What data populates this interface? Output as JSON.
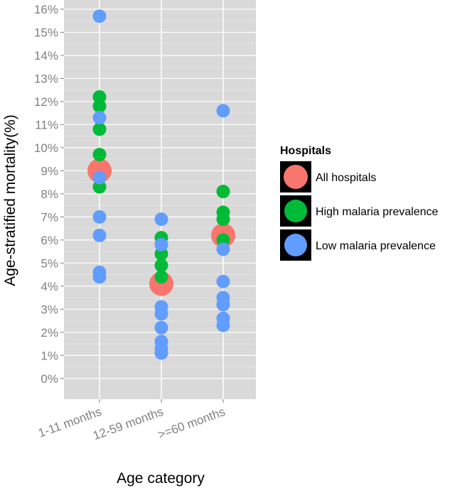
{
  "chart_data": {
    "type": "scatter",
    "title": "",
    "xlabel": "Age category",
    "ylabel": "Age-stratified mortality(%)",
    "categories": [
      "1-11 months",
      "12-59 months",
      ">=60 months"
    ],
    "y_ticks": [
      "0%",
      "1%",
      "2%",
      "3%",
      "4%",
      "5%",
      "6%",
      "7%",
      "8%",
      "9%",
      "10%",
      "11%",
      "12%",
      "13%",
      "14%",
      "15%",
      "16%"
    ],
    "ylim": [
      -0.9,
      16.4
    ],
    "grid": true,
    "legend": {
      "title": "Hospitals",
      "position": "right",
      "entries": [
        {
          "name": "All hospitals",
          "color": "#f8766d"
        },
        {
          "name": "High malaria prevalence",
          "color": "#00ba38"
        },
        {
          "name": "Low malaria prevalence",
          "color": "#619cff"
        }
      ]
    },
    "series": [
      {
        "name": "All hospitals",
        "color": "#f8766d",
        "size": "large",
        "points": [
          {
            "category": "1-11 months",
            "value": 9.0
          },
          {
            "category": "12-59 months",
            "value": 4.1
          },
          {
            "category": ">=60 months",
            "value": 6.2
          }
        ]
      },
      {
        "name": "High malaria prevalence",
        "color": "#00ba38",
        "size": "small",
        "points": [
          {
            "category": "1-11 months",
            "value": 12.2
          },
          {
            "category": "1-11 months",
            "value": 11.8
          },
          {
            "category": "1-11 months",
            "value": 10.8
          },
          {
            "category": "1-11 months",
            "value": 9.7
          },
          {
            "category": "1-11 months",
            "value": 8.3
          },
          {
            "category": "12-59 months",
            "value": 6.1
          },
          {
            "category": "12-59 months",
            "value": 5.4
          },
          {
            "category": "12-59 months",
            "value": 4.9
          },
          {
            "category": "12-59 months",
            "value": 4.4
          },
          {
            "category": ">=60 months",
            "value": 8.1
          },
          {
            "category": ">=60 months",
            "value": 7.2
          },
          {
            "category": ">=60 months",
            "value": 6.9
          },
          {
            "category": ">=60 months",
            "value": 6.0
          }
        ]
      },
      {
        "name": "Low malaria prevalence",
        "color": "#619cff",
        "size": "small",
        "points": [
          {
            "category": "1-11 months",
            "value": 15.7
          },
          {
            "category": "1-11 months",
            "value": 11.3
          },
          {
            "category": "1-11 months",
            "value": 8.7
          },
          {
            "category": "1-11 months",
            "value": 7.0
          },
          {
            "category": "1-11 months",
            "value": 6.2
          },
          {
            "category": "1-11 months",
            "value": 4.6
          },
          {
            "category": "1-11 months",
            "value": 4.4
          },
          {
            "category": "12-59 months",
            "value": 6.9
          },
          {
            "category": "12-59 months",
            "value": 5.8
          },
          {
            "category": "12-59 months",
            "value": 3.1
          },
          {
            "category": "12-59 months",
            "value": 2.8
          },
          {
            "category": "12-59 months",
            "value": 2.2
          },
          {
            "category": "12-59 months",
            "value": 1.6
          },
          {
            "category": "12-59 months",
            "value": 1.3
          },
          {
            "category": "12-59 months",
            "value": 1.1
          },
          {
            "category": ">=60 months",
            "value": 11.6
          },
          {
            "category": ">=60 months",
            "value": 5.6
          },
          {
            "category": ">=60 months",
            "value": 4.2
          },
          {
            "category": ">=60 months",
            "value": 3.5
          },
          {
            "category": ">=60 months",
            "value": 3.2
          },
          {
            "category": ">=60 months",
            "value": 2.6
          },
          {
            "category": ">=60 months",
            "value": 2.3
          }
        ]
      }
    ]
  }
}
